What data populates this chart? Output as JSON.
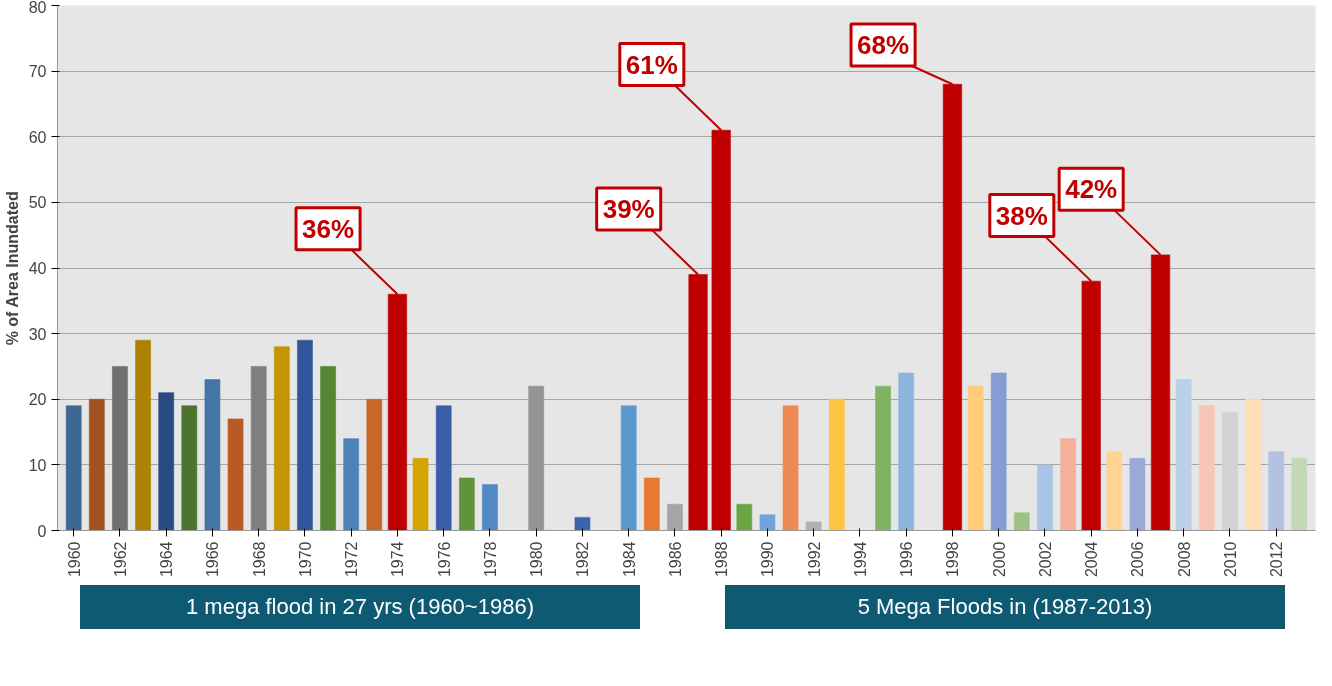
{
  "chart_data": {
    "type": "bar",
    "ylabel": "% of Area Inundated",
    "x": [
      1960,
      1961,
      1962,
      1963,
      1964,
      1965,
      1966,
      1967,
      1968,
      1969,
      1970,
      1971,
      1972,
      1973,
      1974,
      1975,
      1976,
      1977,
      1978,
      1979,
      1980,
      1981,
      1982,
      1983,
      1984,
      1985,
      1986,
      1987,
      1988,
      1989,
      1990,
      1991,
      1992,
      1993,
      1994,
      1995,
      1996,
      1997,
      1998,
      1999,
      2000,
      2001,
      2002,
      2003,
      2004,
      2005,
      2006,
      2007,
      2008,
      2009,
      2010,
      2011,
      2012,
      2013
    ],
    "values": [
      19,
      20,
      25,
      29,
      21,
      19,
      23,
      17,
      25,
      28,
      29,
      25,
      14,
      20,
      36,
      11,
      19,
      8,
      7,
      null,
      22,
      null,
      2,
      null,
      19,
      8,
      4,
      39,
      61,
      4,
      2.4,
      19,
      1.3,
      20,
      null,
      22,
      24,
      null,
      68,
      22,
      24,
      2.7,
      10,
      14,
      38,
      12,
      11,
      42,
      23,
      19,
      18,
      20,
      12,
      11
    ],
    "colors": [
      "#3c6792",
      "#a2521f",
      "#707070",
      "#ad8200",
      "#2a4a82",
      "#4b742e",
      "#4475a6",
      "#b95a24",
      "#7f7f7f",
      "#c49500",
      "#32559a",
      "#568634",
      "#4b82b8",
      "#c8672a",
      "#c00000",
      "#d6a300",
      "#3a5fa8",
      "#5f943c",
      "#5289c4",
      "#999999",
      "#959595",
      "#999999",
      "#3b64ae",
      "#999999",
      "#5a99d0",
      "#e67a33",
      "#a5a5a5",
      "#c00000",
      "#c00000",
      "#6aa544",
      "#6ea4da",
      "#ef8a55",
      "#b0b0b0",
      "#ffc444",
      "#999999",
      "#80b263",
      "#8eb4e0",
      "#999999",
      "#c00000",
      "#ffcc77",
      "#869dd4",
      "#9cc284",
      "#a8c4e6",
      "#f4b09a",
      "#c00000",
      "#ffd494",
      "#9aaad8",
      "#c00000",
      "#bad0ea",
      "#f6c6b8",
      "#d2d2d2",
      "#ffdfb4",
      "#b4c0e0",
      "#c2d8b6"
    ],
    "ylim": [
      0,
      80
    ],
    "yticks": [
      0,
      10,
      20,
      30,
      40,
      50,
      60,
      70,
      80
    ],
    "xlim": [
      1959.3,
      2013.7
    ],
    "xticks": [
      1960,
      1962,
      1964,
      1966,
      1968,
      1970,
      1972,
      1974,
      1976,
      1978,
      1980,
      1982,
      1984,
      1986,
      1988,
      1990,
      1992,
      1994,
      1996,
      1998,
      2000,
      2002,
      2004,
      2006,
      2008,
      2010,
      2012
    ],
    "grid": "y",
    "annotations": [
      {
        "text": "36%",
        "x": 1974,
        "y": 36
      },
      {
        "text": "39%",
        "x": 1987,
        "y": 39
      },
      {
        "text": "61%",
        "x": 1988,
        "y": 61
      },
      {
        "text": "68%",
        "x": 1998,
        "y": 68
      },
      {
        "text": "38%",
        "x": 2004,
        "y": 38
      },
      {
        "text": "42%",
        "x": 2007,
        "y": 42
      },
      "1 mega flood in 27 yrs (1960~1986)",
      "5 Mega Floods in (1987-2013)"
    ]
  }
}
